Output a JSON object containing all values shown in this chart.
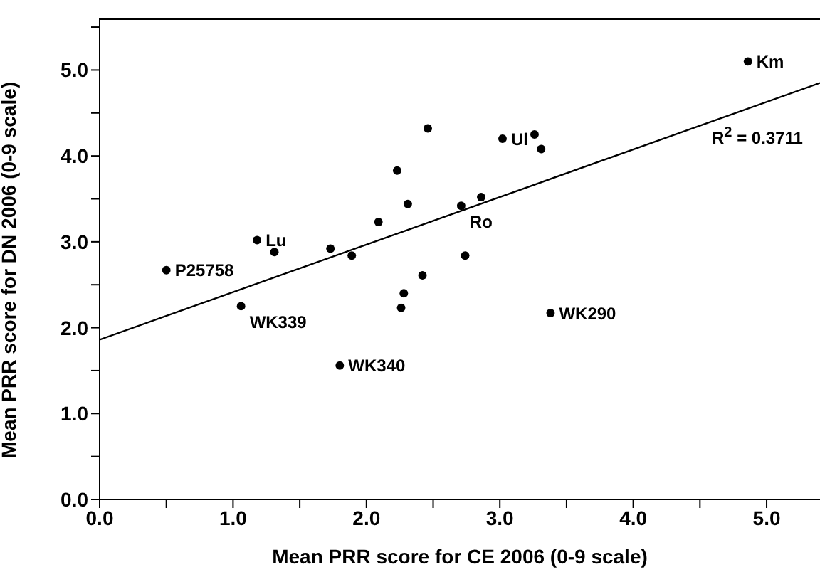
{
  "chart_data": {
    "type": "scatter",
    "xlabel": "Mean PRR score for CE 2006 (0-9 scale)",
    "ylabel": "Mean PRR score for DN 2006 (0-9 scale)",
    "xlim": [
      0,
      5.4
    ],
    "ylim": [
      0,
      5.6
    ],
    "xticks": [
      {
        "value": 0,
        "label": "0.0"
      },
      {
        "value": 0.5,
        "label": null
      },
      {
        "value": 1,
        "label": "1.0"
      },
      {
        "value": 1.5,
        "label": null
      },
      {
        "value": 2,
        "label": "2.0"
      },
      {
        "value": 2.5,
        "label": null
      },
      {
        "value": 3,
        "label": "3.0"
      },
      {
        "value": 3.5,
        "label": null
      },
      {
        "value": 4,
        "label": "4.0"
      },
      {
        "value": 4.5,
        "label": null
      },
      {
        "value": 5,
        "label": "5.0"
      }
    ],
    "yticks": [
      {
        "value": 0,
        "label": "0.0"
      },
      {
        "value": 0.5,
        "label": null
      },
      {
        "value": 1,
        "label": "1.0"
      },
      {
        "value": 1.5,
        "label": null
      },
      {
        "value": 2,
        "label": "2.0"
      },
      {
        "value": 2.5,
        "label": null
      },
      {
        "value": 3,
        "label": "3.0"
      },
      {
        "value": 3.5,
        "label": null
      },
      {
        "value": 4,
        "label": "4.0"
      },
      {
        "value": 4.5,
        "label": null
      },
      {
        "value": 5,
        "label": "5.0"
      },
      {
        "value": 5.5,
        "label": null
      }
    ],
    "grid": false,
    "legend": false,
    "marker": "circle",
    "series": [
      {
        "color": "#000000",
        "x": [
          2.46,
          2.23,
          2.31,
          2.09,
          1.73,
          1.89,
          1.18,
          1.31,
          0.5,
          2.42,
          4.86,
          3.02,
          3.26,
          3.31,
          2.71,
          2.86,
          2.74,
          1.06,
          1.8,
          2.28,
          2.26,
          3.38
        ],
        "values": [
          4.32,
          3.83,
          3.44,
          3.23,
          2.92,
          2.84,
          3.02,
          2.88,
          2.67,
          2.61,
          5.1,
          4.2,
          4.25,
          4.08,
          3.42,
          3.52,
          2.84,
          2.25,
          1.56,
          2.4,
          2.23,
          2.17
        ]
      },
      {
        "type": "line",
        "marker": "none",
        "color": "#000000",
        "x": [
          0,
          5.4
        ],
        "values": [
          1.86,
          4.85
        ]
      }
    ],
    "annotations": [
      {
        "text": "Km",
        "x": 4.86,
        "y": 5.1
      },
      {
        "text": "Ul",
        "x": 3.02,
        "y": 4.2
      },
      {
        "text": "Ro",
        "x": 2.71,
        "y": 3.42
      },
      {
        "text": "Lu",
        "x": 1.18,
        "y": 3.02
      },
      {
        "text": "P25758",
        "x": 0.5,
        "y": 2.67
      },
      {
        "text": "WK339",
        "x": 1.06,
        "y": 2.25
      },
      {
        "text": "WK340",
        "x": 1.8,
        "y": 1.56
      },
      {
        "text": "WK290",
        "x": 3.38,
        "y": 2.17
      },
      "R$^{2}$ = 0.3711"
    ]
  }
}
